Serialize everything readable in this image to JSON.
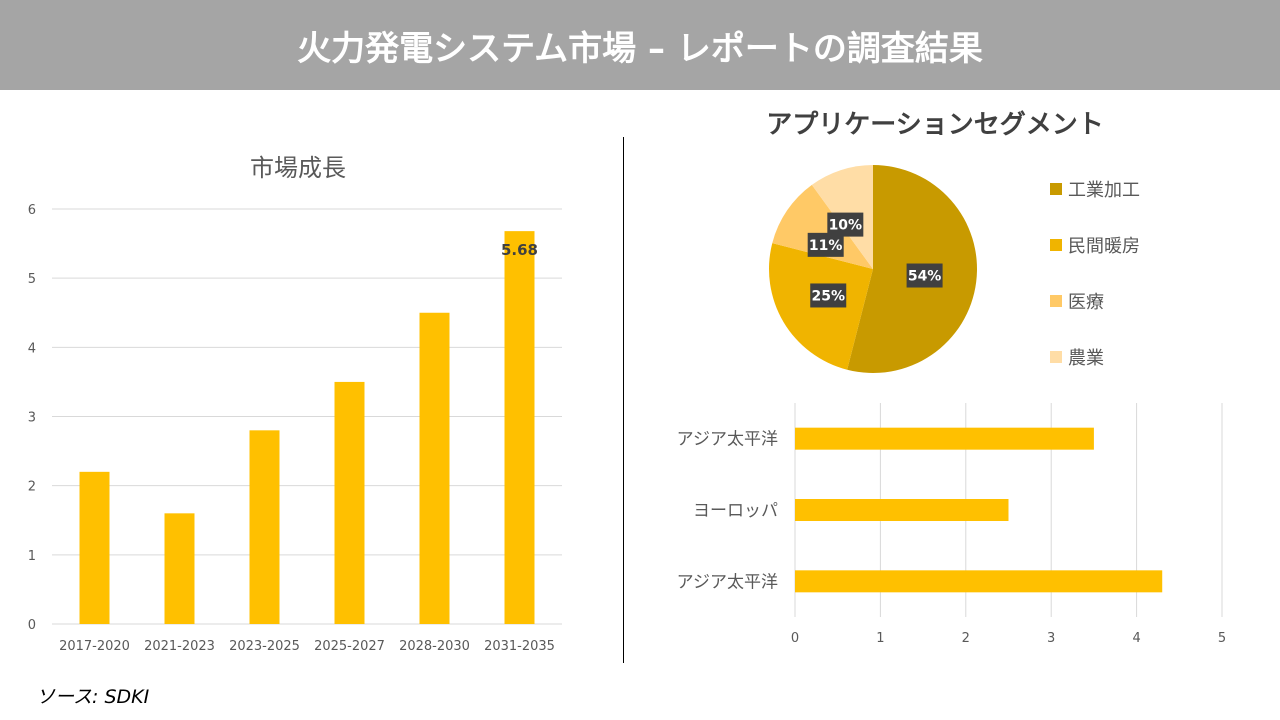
{
  "header": {
    "title": "火力発電システム市場 – レポートの調査結果"
  },
  "source": "ソース: SDKI",
  "colors": {
    "bar": "#FFC000",
    "pie": [
      "#C89A00",
      "#F0B400",
      "#FFC966",
      "#FFDDA6"
    ],
    "banner": "#A5A5A5"
  },
  "chart_data": [
    {
      "type": "bar",
      "title": "市場成長",
      "categories": [
        "2017-2020",
        "2021-2023",
        "2023-2025",
        "2025-2027",
        "2028-2030",
        "2031-2035"
      ],
      "values": [
        2.2,
        1.6,
        2.8,
        3.5,
        4.5,
        5.68
      ],
      "ylim": [
        0,
        6
      ],
      "yticks": [
        "0",
        "1",
        "2",
        "3",
        "4",
        "5",
        "6"
      ],
      "data_labels": [
        {
          "index": 5,
          "text": "5.68"
        }
      ],
      "grid": true
    },
    {
      "type": "pie",
      "title": "アプリケーションセグメント",
      "labels": [
        "工業加工",
        "民間暖房",
        "医療",
        "農業"
      ],
      "values": [
        54,
        25,
        11,
        10
      ],
      "data_labels": [
        "54%",
        "25%",
        "11%",
        "10%"
      ],
      "legend": "right"
    },
    {
      "type": "bar",
      "orientation": "horizontal",
      "categories": [
        "アジア太平洋",
        "ヨーロッパ",
        "アジア太平洋"
      ],
      "values": [
        3.5,
        2.5,
        4.3
      ],
      "xlim": [
        0,
        5
      ],
      "xticks": [
        "0",
        "1",
        "2",
        "3",
        "4",
        "5"
      ],
      "grid": true
    }
  ]
}
